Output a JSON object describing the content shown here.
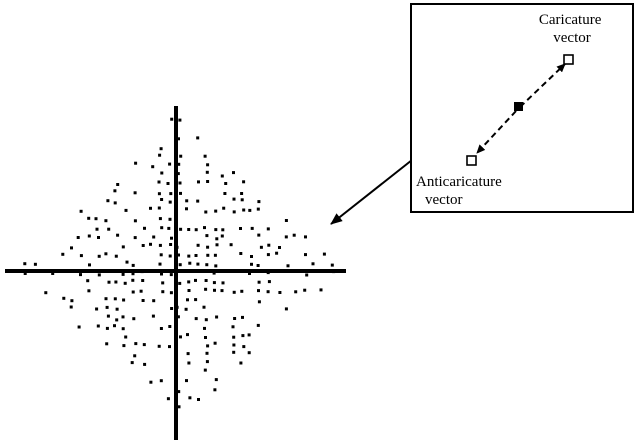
{
  "inset": {
    "caricature_label": [
      "Caricature",
      "vector"
    ],
    "anticaricature_label": [
      "Anticaricature",
      "vector"
    ]
  },
  "colors": {
    "ink": "#000000",
    "background": "#ffffff"
  }
}
